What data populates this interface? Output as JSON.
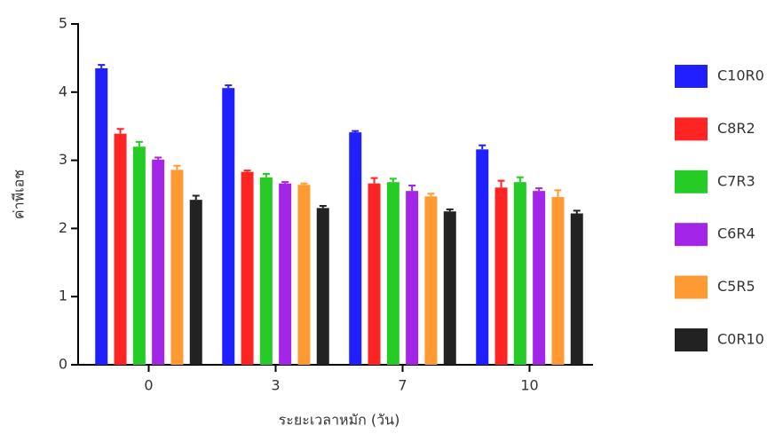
{
  "chart_data": {
    "type": "bar",
    "x_label": "ระยะเวลาหมัก (วัน)",
    "y_label": "ค่าพีเอช",
    "categories": [
      "0",
      "3",
      "7",
      "10"
    ],
    "ylim": [
      0,
      5
    ],
    "yticks": [
      0,
      1,
      2,
      3,
      4,
      5
    ],
    "legend": "right",
    "series": [
      {
        "name": "C10R0",
        "color": "#1f1fff",
        "values": [
          4.35,
          4.06,
          3.41,
          3.16
        ],
        "errors": [
          0.05,
          0.04,
          0.02,
          0.06
        ]
      },
      {
        "name": "C8R2",
        "color": "#ff2424",
        "values": [
          3.39,
          2.83,
          2.66,
          2.6
        ],
        "errors": [
          0.07,
          0.02,
          0.08,
          0.1
        ]
      },
      {
        "name": "C7R3",
        "color": "#26cc26",
        "values": [
          3.2,
          2.75,
          2.68,
          2.68
        ],
        "errors": [
          0.07,
          0.05,
          0.05,
          0.07
        ]
      },
      {
        "name": "C6R4",
        "color": "#a325e8",
        "values": [
          3.01,
          2.66,
          2.55,
          2.55
        ],
        "errors": [
          0.03,
          0.02,
          0.08,
          0.04
        ]
      },
      {
        "name": "C5R5",
        "color": "#ff9a33",
        "values": [
          2.86,
          2.64,
          2.47,
          2.46
        ],
        "errors": [
          0.06,
          0.02,
          0.04,
          0.1
        ]
      },
      {
        "name": "C0R10",
        "color": "#222222",
        "values": [
          2.42,
          2.3,
          2.25,
          2.22
        ],
        "errors": [
          0.06,
          0.03,
          0.03,
          0.04
        ]
      }
    ]
  }
}
